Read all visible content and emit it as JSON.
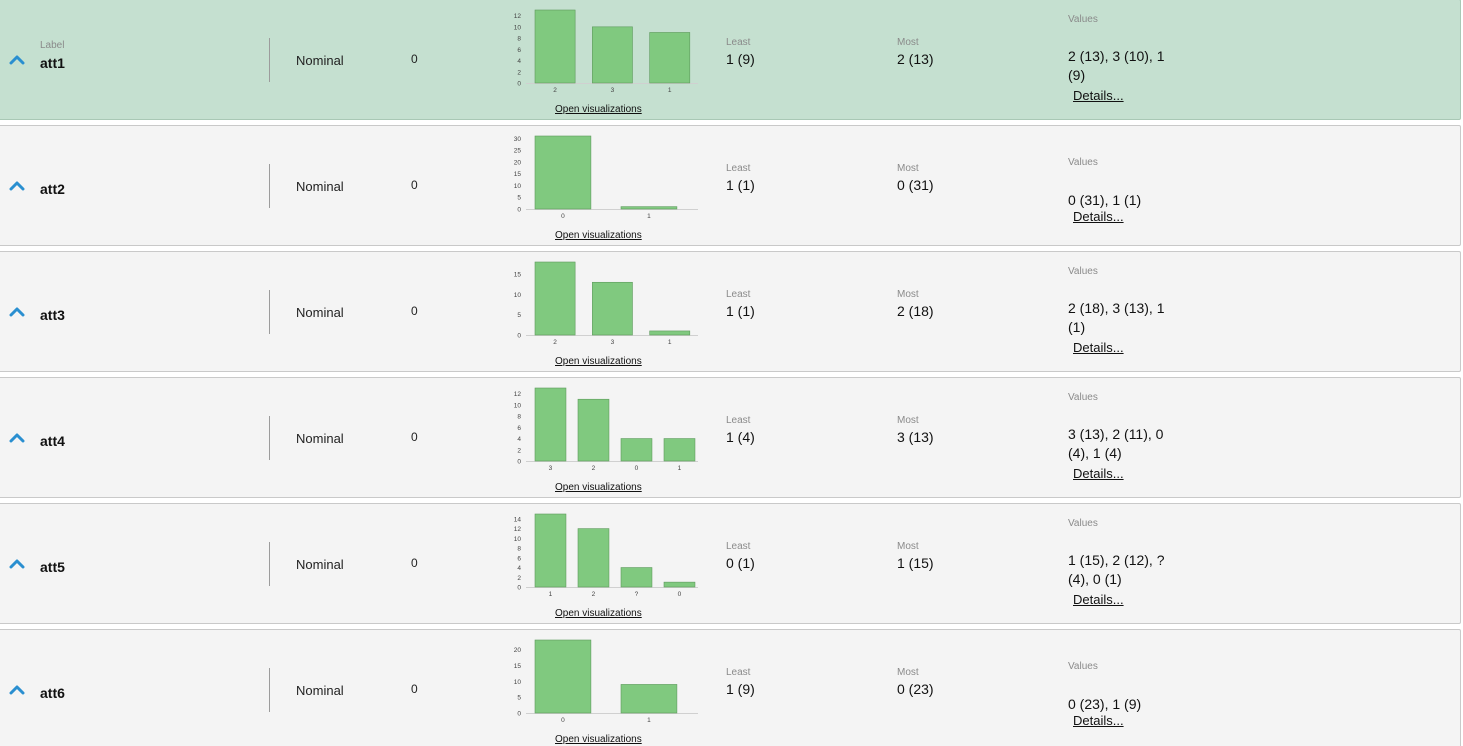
{
  "labels": {
    "label_caption": "Label",
    "least_caption": "Least",
    "most_caption": "Most",
    "values_caption": "Values",
    "open_visualizations": "Open visualizations",
    "details": "Details..."
  },
  "colors": {
    "bar_fill": "#80c97f",
    "bar_stroke": "#5e9a5d",
    "selected_row_bg": "#c5e0d0",
    "row_bg": "#f4f4f4",
    "expand_icon": "#2a8fd0"
  },
  "attributes": [
    {
      "name": "att1",
      "type": "Nominal",
      "missing": "0",
      "least": "1 (9)",
      "most": "2 (13)",
      "values": "2 (13), 3 (10), 1 (9)",
      "selected": true,
      "show_label_caption": true,
      "chart_data": {
        "type": "bar",
        "categories": [
          "2",
          "3",
          "1"
        ],
        "values": [
          13,
          10,
          9
        ],
        "yticks": [
          0,
          2,
          4,
          6,
          8,
          10,
          12
        ],
        "ylim": [
          0,
          13
        ]
      }
    },
    {
      "name": "att2",
      "type": "Nominal",
      "missing": "0",
      "least": "1 (1)",
      "most": "0 (31)",
      "values": "0 (31), 1 (1)",
      "selected": false,
      "show_label_caption": false,
      "chart_data": {
        "type": "bar",
        "categories": [
          "0",
          "1"
        ],
        "values": [
          31,
          1
        ],
        "yticks": [
          0,
          5,
          10,
          15,
          20,
          25,
          30
        ],
        "ylim": [
          0,
          31
        ]
      }
    },
    {
      "name": "att3",
      "type": "Nominal",
      "missing": "0",
      "least": "1 (1)",
      "most": "2 (18)",
      "values": "2 (18), 3 (13), 1 (1)",
      "selected": false,
      "show_label_caption": false,
      "chart_data": {
        "type": "bar",
        "categories": [
          "2",
          "3",
          "1"
        ],
        "values": [
          18,
          13,
          1
        ],
        "yticks": [
          0,
          5,
          10,
          15
        ],
        "ylim": [
          0,
          18
        ]
      }
    },
    {
      "name": "att4",
      "type": "Nominal",
      "missing": "0",
      "least": "1 (4)",
      "most": "3 (13)",
      "values": "3 (13), 2 (11), 0 (4), 1 (4)",
      "selected": false,
      "show_label_caption": false,
      "chart_data": {
        "type": "bar",
        "categories": [
          "3",
          "2",
          "0",
          "1"
        ],
        "values": [
          13,
          11,
          4,
          4
        ],
        "yticks": [
          0,
          2,
          4,
          6,
          8,
          10,
          12
        ],
        "ylim": [
          0,
          13
        ]
      }
    },
    {
      "name": "att5",
      "type": "Nominal",
      "missing": "0",
      "least": "0 (1)",
      "most": "1 (15)",
      "values": "1 (15), 2 (12), ? (4), 0 (1)",
      "selected": false,
      "show_label_caption": false,
      "chart_data": {
        "type": "bar",
        "categories": [
          "1",
          "2",
          "?",
          "0"
        ],
        "values": [
          15,
          12,
          4,
          1
        ],
        "yticks": [
          0,
          2,
          4,
          6,
          8,
          10,
          12,
          14
        ],
        "ylim": [
          0,
          15
        ]
      }
    },
    {
      "name": "att6",
      "type": "Nominal",
      "missing": "0",
      "least": "1 (9)",
      "most": "0 (23)",
      "values": "0 (23), 1 (9)",
      "selected": false,
      "show_label_caption": false,
      "chart_data": {
        "type": "bar",
        "categories": [
          "0",
          "1"
        ],
        "values": [
          23,
          9
        ],
        "yticks": [
          0,
          5,
          10,
          15,
          20
        ],
        "ylim": [
          0,
          23
        ]
      }
    }
  ]
}
